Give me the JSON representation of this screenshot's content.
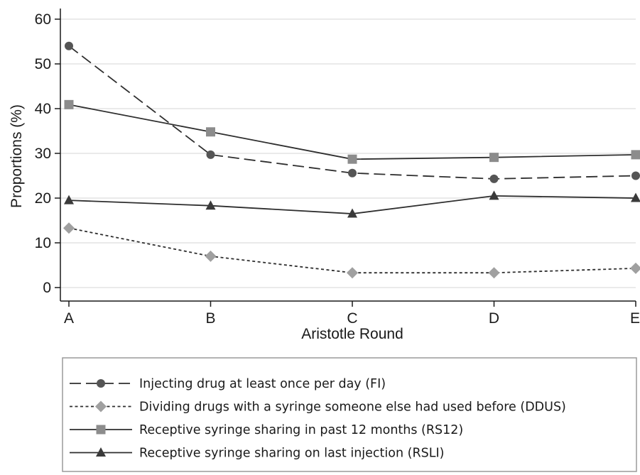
{
  "chart_data": {
    "type": "line",
    "title": "",
    "xlabel": "Aristotle Round",
    "ylabel": "Proportions (%)",
    "categories": [
      "A",
      "B",
      "C",
      "D",
      "E"
    ],
    "ylim": [
      0,
      60
    ],
    "yticks": [
      0,
      10,
      20,
      30,
      40,
      50,
      60
    ],
    "grid": true,
    "legend_position": "bottom",
    "series": [
      {
        "name": "Injecting drug at least once per day (FI)",
        "values": [
          54.0,
          29.7,
          25.6,
          24.3,
          25.0
        ],
        "marker": "circle",
        "dash": "long-dash",
        "color": "#2e2e2e",
        "marker_color": "#555555"
      },
      {
        "name": "Dividing drugs with a syringe someone else had used before (DDUS)",
        "values": [
          13.3,
          7.0,
          3.3,
          3.3,
          4.3
        ],
        "marker": "diamond",
        "dash": "short-dash",
        "color": "#2e2e2e",
        "marker_color": "#a0a0a0"
      },
      {
        "name": "Receptive syringe sharing in past 12 months (RS12)",
        "values": [
          40.9,
          34.8,
          28.7,
          29.1,
          29.7
        ],
        "marker": "square",
        "dash": "solid",
        "color": "#2e2e2e",
        "marker_color": "#8c8c8c"
      },
      {
        "name": "Receptive syringe sharing on last injection (RSLI)",
        "values": [
          19.5,
          18.3,
          16.5,
          20.5,
          20.0
        ],
        "marker": "triangle",
        "dash": "solid",
        "color": "#2e2e2e",
        "marker_color": "#3a3a3a"
      }
    ]
  }
}
